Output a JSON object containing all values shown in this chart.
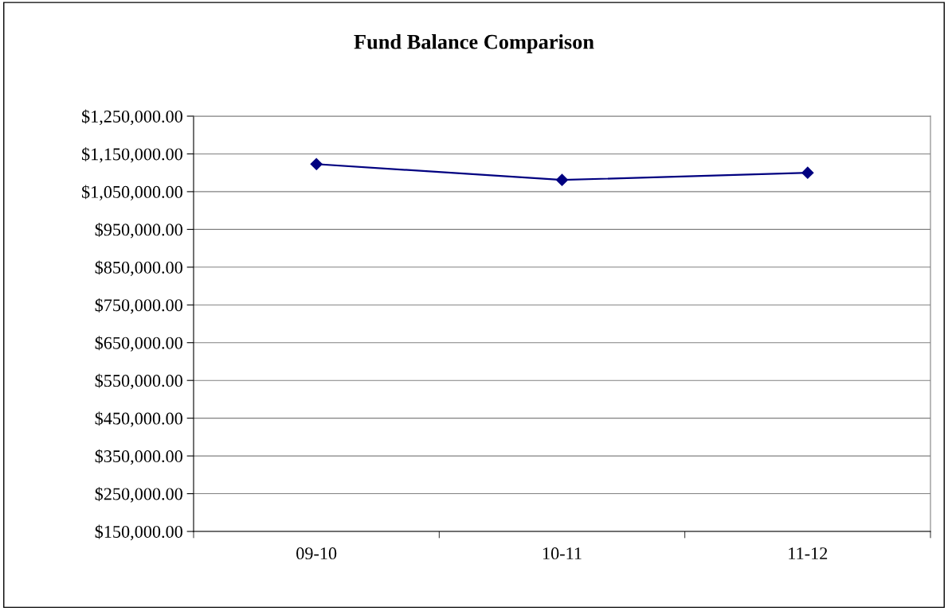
{
  "chart_data": {
    "type": "line",
    "title": "Fund Balance Comparison",
    "categories": [
      "09-10",
      "10-11",
      "11-12"
    ],
    "series": [
      {
        "color": "#000080",
        "values": [
          1123000,
          1081000,
          1100000
        ]
      }
    ],
    "ylim": [
      150000,
      1250000
    ],
    "yticks": [
      {
        "value": 150000,
        "label": "$150,000.00"
      },
      {
        "value": 250000,
        "label": "$250,000.00"
      },
      {
        "value": 350000,
        "label": "$350,000.00"
      },
      {
        "value": 450000,
        "label": "$450,000.00"
      },
      {
        "value": 550000,
        "label": "$550,000.00"
      },
      {
        "value": 650000,
        "label": "$650,000.00"
      },
      {
        "value": 750000,
        "label": "$750,000.00"
      },
      {
        "value": 850000,
        "label": "$850,000.00"
      },
      {
        "value": 950000,
        "label": "$950,000.00"
      },
      {
        "value": 1050000,
        "label": "$1,050,000.00"
      },
      {
        "value": 1150000,
        "label": "$1,150,000.00"
      },
      {
        "value": 1250000,
        "label": "$1,250,000.00"
      }
    ],
    "grid": "y",
    "marker": "diamond",
    "line_style": "solid",
    "legend": false
  }
}
